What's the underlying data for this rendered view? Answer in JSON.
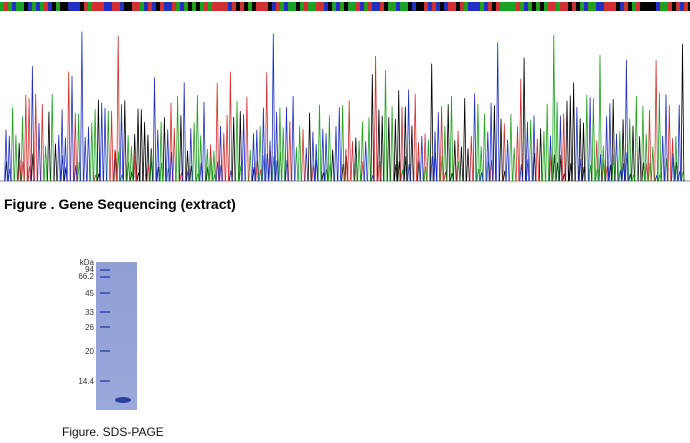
{
  "figure1": {
    "caption": "Figure . Gene Sequencing (extract)"
  },
  "figure2": {
    "caption": "Figure. SDS-PAGE",
    "markers": [
      "kDa",
      "94",
      "66.2",
      "45",
      "33",
      "26",
      "20",
      "14.4"
    ]
  }
}
